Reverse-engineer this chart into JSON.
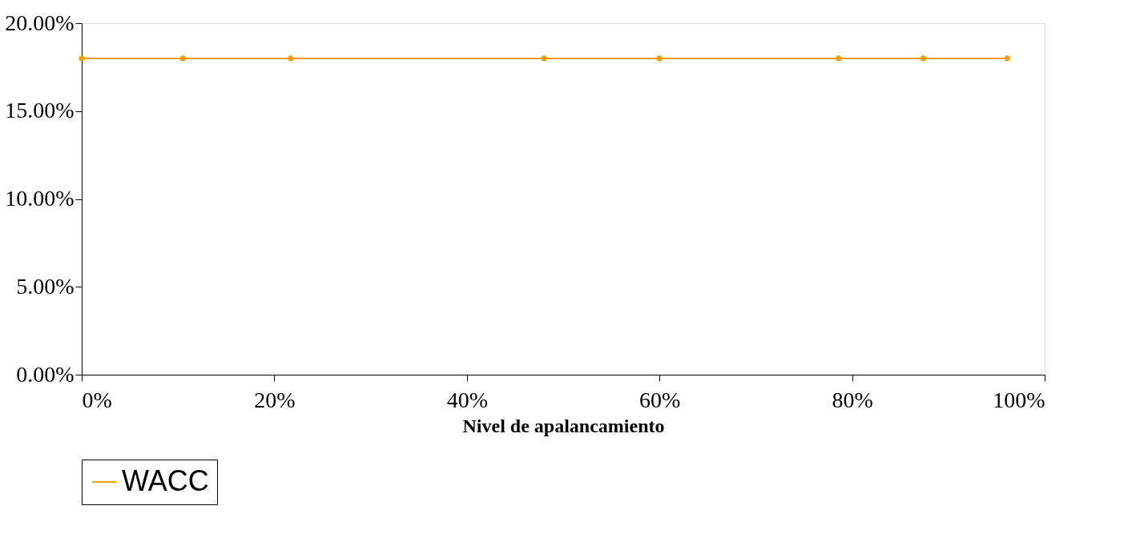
{
  "chart_data": {
    "type": "line",
    "xlabel": "Nivel de apalancamiento",
    "x": [
      0,
      10.5,
      21.7,
      48.0,
      60.0,
      78.6,
      87.4,
      96.1
    ],
    "series": [
      {
        "name": "WACC",
        "color": "#f5a000",
        "values": [
          18,
          18,
          18,
          18,
          18,
          18,
          18,
          18
        ]
      }
    ],
    "xlim": [
      0,
      100
    ],
    "xticks": [
      {
        "value": 0,
        "label": "0%"
      },
      {
        "value": 20,
        "label": "20%"
      },
      {
        "value": 40,
        "label": "40%"
      },
      {
        "value": 60,
        "label": "60%"
      },
      {
        "value": 80,
        "label": "80%"
      },
      {
        "value": 100,
        "label": "100%"
      }
    ],
    "ylim": [
      0,
      20
    ],
    "yticks": [
      {
        "value": 0,
        "label": "0.00%"
      },
      {
        "value": 5,
        "label": "5.00%"
      },
      {
        "value": 10,
        "label": "10.00%"
      },
      {
        "value": 15,
        "label": "15.00%"
      },
      {
        "value": 20,
        "label": "20.00%"
      }
    ],
    "grid": false,
    "legend": "bottom",
    "marker": "circle",
    "line_style": "solid"
  }
}
